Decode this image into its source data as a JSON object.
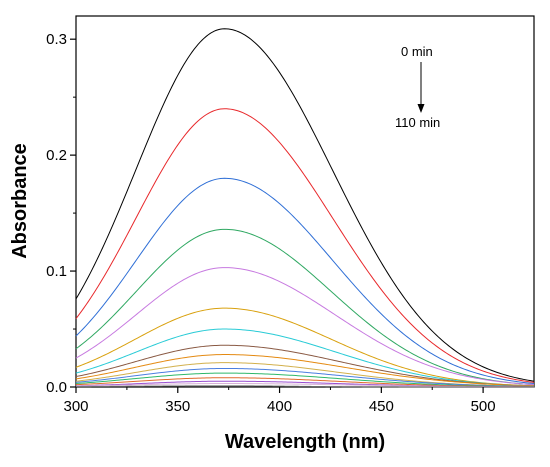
{
  "chart_data": {
    "type": "line",
    "title": "",
    "xlabel": "Wavelength (nm)",
    "ylabel": "Absorbance",
    "xlim": [
      300,
      525
    ],
    "ylim": [
      0,
      0.32
    ],
    "x_ticks": [
      "300",
      "350",
      "400",
      "450",
      "500"
    ],
    "y_ticks": [
      "0.0",
      "0.1",
      "0.2",
      "0.3"
    ],
    "grid": false,
    "legend": "none",
    "peak_wavelength": 373,
    "annotations": {
      "start_label": "0 min",
      "end_label": "110 min"
    },
    "series": [
      {
        "peak": 0.309,
        "at_300": 0.076,
        "at_525": 0.005,
        "color": "#000000"
      },
      {
        "peak": 0.24,
        "at_300": 0.059,
        "at_525": 0.004,
        "color": "#e8282b"
      },
      {
        "peak": 0.18,
        "at_300": 0.044,
        "at_525": 0.003,
        "color": "#2f6fd6"
      },
      {
        "peak": 0.136,
        "at_300": 0.033,
        "at_525": 0.002,
        "color": "#2fa862"
      },
      {
        "peak": 0.103,
        "at_300": 0.025,
        "at_525": 0.002,
        "color": "#c77ae0"
      },
      {
        "peak": 0.068,
        "at_300": 0.017,
        "at_525": 0.001,
        "color": "#d9a10e"
      },
      {
        "peak": 0.05,
        "at_300": 0.012,
        "at_525": 0.001,
        "color": "#29cbd6"
      },
      {
        "peak": 0.036,
        "at_300": 0.009,
        "at_525": 0.001,
        "color": "#8a5a44"
      },
      {
        "peak": 0.028,
        "at_300": 0.007,
        "at_525": 0.001,
        "color": "#e48a12"
      },
      {
        "peak": 0.021,
        "at_300": 0.005,
        "at_525": 0.0005,
        "color": "#d2b04c"
      },
      {
        "peak": 0.016,
        "at_300": 0.004,
        "at_525": 0.0005,
        "color": "#4a7fe0"
      },
      {
        "peak": 0.012,
        "at_300": 0.003,
        "at_525": 0.0003,
        "color": "#2fb86a"
      },
      {
        "peak": 0.008,
        "at_300": 0.002,
        "at_525": 0.0002,
        "color": "#e06a2a"
      },
      {
        "peak": 0.005,
        "at_300": 0.001,
        "at_525": 0.0001,
        "color": "#9a4fd0"
      },
      {
        "peak": 0.003,
        "at_300": 0.0008,
        "at_525": 0.0001,
        "color": "#d8b4d8"
      },
      {
        "peak": 0.001,
        "at_300": 0.0003,
        "at_525": 0.0,
        "color": "#6a6a6a"
      }
    ]
  }
}
